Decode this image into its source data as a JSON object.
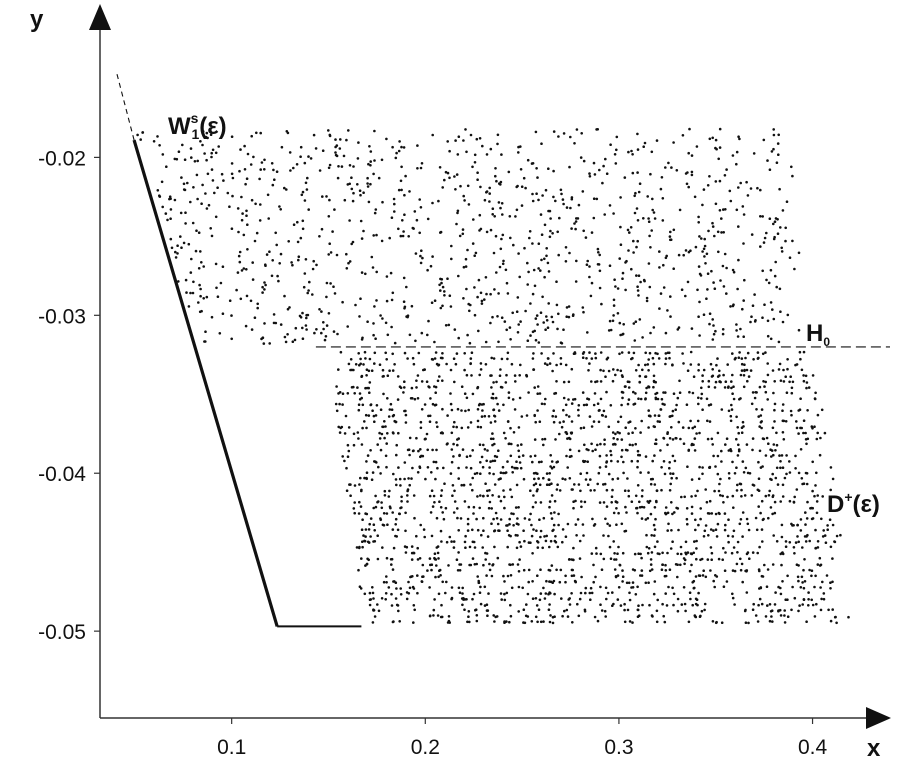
{
  "chart_data": {
    "type": "scatter",
    "title": "",
    "xlabel": "x",
    "ylabel": "y",
    "xlim": [
      0.032,
      0.44
    ],
    "ylim": [
      -0.0555,
      -0.0113
    ],
    "xticks": [
      0.1,
      0.2,
      0.3,
      0.4
    ],
    "xtick_labels": [
      "0.1",
      "0.2",
      "0.3",
      "0.4"
    ],
    "yticks": [
      -0.02,
      -0.03,
      -0.04,
      -0.05
    ],
    "ytick_labels": [
      "-0.02",
      "-0.03",
      "-0.04",
      "-0.05"
    ],
    "grid": false,
    "annotations": {
      "ws": {
        "main": "W",
        "sup": "s",
        "sub": "1",
        "tail": "(ε)"
      },
      "h0": {
        "main": "H",
        "sub": "0"
      },
      "dplus": {
        "main": "D",
        "sup": "+",
        "tail": "(ε)"
      }
    },
    "lines": {
      "stable_manifold": {
        "style": "solid",
        "points": [
          [
            0.0496,
            -0.0189
          ],
          [
            0.1235,
            -0.0497
          ]
        ]
      },
      "stable_manifold_extension": {
        "style": "dashed",
        "points": [
          [
            0.0496,
            -0.0189
          ],
          [
            0.0405,
            -0.0146
          ]
        ]
      },
      "h0_level": {
        "style": "dashed",
        "points": [
          [
            0.1435,
            -0.032
          ],
          [
            0.44,
            -0.032
          ]
        ]
      },
      "bottom_edge": {
        "style": "solid",
        "points": [
          [
            0.1235,
            -0.0497
          ],
          [
            0.167,
            -0.0497
          ]
        ]
      }
    },
    "point_regions": [
      {
        "name": "upper-band",
        "x_range": [
          0.05,
          0.395
        ],
        "y_range": [
          -0.0318,
          -0.0182
        ],
        "approx_count": 1100
      },
      {
        "name": "lower-region-D-plus",
        "x_range": [
          0.149,
          0.415
        ],
        "y_range": [
          -0.0496,
          -0.0322
        ],
        "approx_count": 2200
      }
    ]
  }
}
